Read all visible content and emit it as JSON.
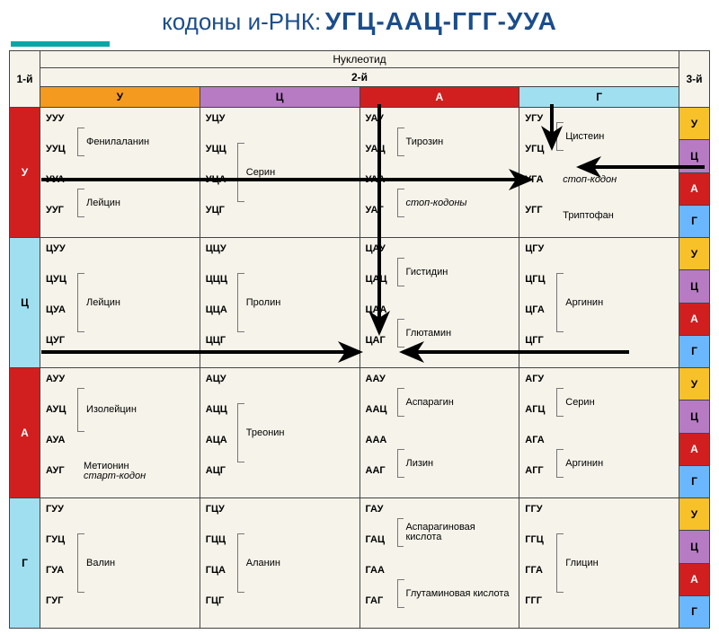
{
  "title": {
    "prefix": "кодоны и-РНК:",
    "codons": "УГЦ-ААЦ-ГГГ-УУА",
    "prefix_color": "#1b4d8c",
    "codons_color": "#1b4d8c"
  },
  "header": {
    "top": "Нуклеотид",
    "second": "2-й",
    "first_label": "1-й",
    "third_label": "3-й"
  },
  "bases": {
    "u": "У",
    "c": "Ц",
    "a": "А",
    "g": "Г"
  },
  "colors": {
    "col_u": "#f39a1f",
    "col_c": "#b77bc4",
    "col_a": "#d11f1f",
    "col_g": "#9fdff0",
    "third_u": "#f7c12a",
    "third_c": "#b77bc4",
    "third_a": "#d11f1f",
    "third_g": "#6bb7ff",
    "table_bg": "#f6f3ea",
    "border": "#444444"
  },
  "cells": {
    "u_u": {
      "triplets": [
        "УУУ",
        "УУЦ",
        "УУА",
        "УУГ"
      ],
      "groups": [
        {
          "span": 2,
          "aa": "Фенилаланин"
        },
        {
          "span": 2,
          "aa": "Лейцин"
        }
      ]
    },
    "u_c": {
      "triplets": [
        "УЦУ",
        "УЦЦ",
        "УЦА",
        "УЦГ"
      ],
      "groups": [
        {
          "span": 4,
          "aa": "Серин"
        }
      ]
    },
    "u_a": {
      "triplets": [
        "УАУ",
        "УАЦ",
        "УАА",
        "УАГ"
      ],
      "groups": [
        {
          "span": 2,
          "aa": "Тирозин"
        },
        {
          "span": 2,
          "aa": "стоп-кодоны",
          "italic": true
        }
      ]
    },
    "u_g": {
      "triplets": [
        "УГУ",
        "УГЦ",
        "УГА",
        "УГГ"
      ],
      "groups": [
        {
          "span": 2,
          "aa": "Цистеин"
        },
        {
          "span": 1,
          "aa": "стоп-кодон",
          "italic": true
        },
        {
          "span": 1,
          "aa": "Триптофан"
        }
      ]
    },
    "c_u": {
      "triplets": [
        "ЦУУ",
        "ЦУЦ",
        "ЦУА",
        "ЦУГ"
      ],
      "groups": [
        {
          "span": 4,
          "aa": "Лейцин"
        }
      ]
    },
    "c_c": {
      "triplets": [
        "ЦЦУ",
        "ЦЦЦ",
        "ЦЦА",
        "ЦЦГ"
      ],
      "groups": [
        {
          "span": 4,
          "aa": "Пролин"
        }
      ]
    },
    "c_a": {
      "triplets": [
        "ЦАУ",
        "ЦАЦ",
        "ЦАА",
        "ЦАГ"
      ],
      "groups": [
        {
          "span": 2,
          "aa": "Гистидин"
        },
        {
          "span": 2,
          "aa": "Глютамин"
        }
      ]
    },
    "c_g": {
      "triplets": [
        "ЦГУ",
        "ЦГЦ",
        "ЦГА",
        "ЦГГ"
      ],
      "groups": [
        {
          "span": 4,
          "aa": "Аргинин"
        }
      ]
    },
    "a_u": {
      "triplets": [
        "АУУ",
        "АУЦ",
        "АУА",
        "АУГ"
      ],
      "groups": [
        {
          "span": 3,
          "aa": "Изолейцин"
        },
        {
          "span": 1,
          "aa": "Метионин",
          "sub": "старт-кодон",
          "italic_sub": true
        }
      ]
    },
    "a_c": {
      "triplets": [
        "АЦУ",
        "АЦЦ",
        "АЦА",
        "АЦГ"
      ],
      "groups": [
        {
          "span": 4,
          "aa": "Треонин"
        }
      ]
    },
    "a_a": {
      "triplets": [
        "ААУ",
        "ААЦ",
        "ААА",
        "ААГ"
      ],
      "groups": [
        {
          "span": 2,
          "aa": "Аспарагин"
        },
        {
          "span": 2,
          "aa": "Лизин"
        }
      ]
    },
    "a_g": {
      "triplets": [
        "АГУ",
        "АГЦ",
        "АГА",
        "АГГ"
      ],
      "groups": [
        {
          "span": 2,
          "aa": "Серин"
        },
        {
          "span": 2,
          "aa": "Аргинин"
        }
      ]
    },
    "g_u": {
      "triplets": [
        "ГУУ",
        "ГУЦ",
        "ГУА",
        "ГУГ"
      ],
      "groups": [
        {
          "span": 4,
          "aa": "Валин"
        }
      ]
    },
    "g_c": {
      "triplets": [
        "ГЦУ",
        "ГЦЦ",
        "ГЦА",
        "ГЦГ"
      ],
      "groups": [
        {
          "span": 4,
          "aa": "Аланин"
        }
      ]
    },
    "g_a": {
      "triplets": [
        "ГАУ",
        "ГАЦ",
        "ГАА",
        "ГАГ"
      ],
      "groups": [
        {
          "span": 2,
          "aa": "Аспарагиновая кислота"
        },
        {
          "span": 2,
          "aa": "Глутаминовая кислота"
        }
      ]
    },
    "g_g": {
      "triplets": [
        "ГГУ",
        "ГГЦ",
        "ГГА",
        "ГГГ"
      ],
      "groups": [
        {
          "span": 4,
          "aa": "Глицин"
        }
      ]
    }
  },
  "third_order": [
    "У",
    "Ц",
    "А",
    "Г"
  ]
}
